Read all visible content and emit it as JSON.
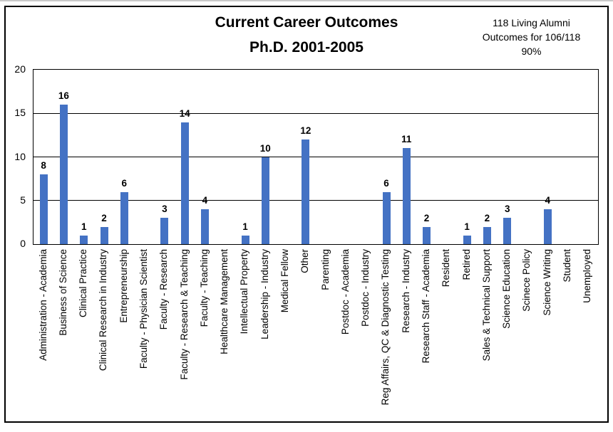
{
  "title": {
    "line1": "Current Career Outcomes",
    "line2": "Ph.D. 2001-2005"
  },
  "annotation": {
    "line1": "118 Living Alumni",
    "line2": "Outcomes for 106/118",
    "line3": "90%"
  },
  "chart_data": {
    "type": "bar",
    "title": "Current Career Outcomes Ph.D. 2001-2005",
    "categories": [
      "Administration - Academia",
      "Business of Science",
      "Clinical Practice",
      "Clinical Research in Industry",
      "Entrepreneurship",
      "Faculty - Physician Scientist",
      "Faculty - Research",
      "Faculty - Research & Teaching",
      "Faculty - Teaching",
      "Healthcare Management",
      "Intellectual Property",
      "Leadership - Industry",
      "Medical Fellow",
      "Other",
      "Parenting",
      "Postdoc - Academia",
      "Postdoc - Industry",
      "Reg Affairs, QC & Diagnostic Testing",
      "Research - Industry",
      "Research Staff - Academia",
      "Resident",
      "Retired",
      "Sales & Technical Support",
      "Science Education",
      "Scinece Policy",
      "Science Writing",
      "Student",
      "Unemployed"
    ],
    "values": [
      8,
      16,
      1,
      2,
      6,
      0,
      3,
      14,
      4,
      0,
      1,
      10,
      0,
      12,
      0,
      0,
      0,
      6,
      11,
      2,
      0,
      1,
      2,
      3,
      0,
      4,
      0,
      0
    ],
    "xlabel": "",
    "ylabel": "",
    "ylim": [
      0,
      20
    ],
    "yticks": [
      0,
      5,
      10,
      15,
      20
    ],
    "grid": "horizontal",
    "legend": "none",
    "value_labels": true,
    "bar_color": "#4472C4",
    "axis_color": "#000000"
  }
}
